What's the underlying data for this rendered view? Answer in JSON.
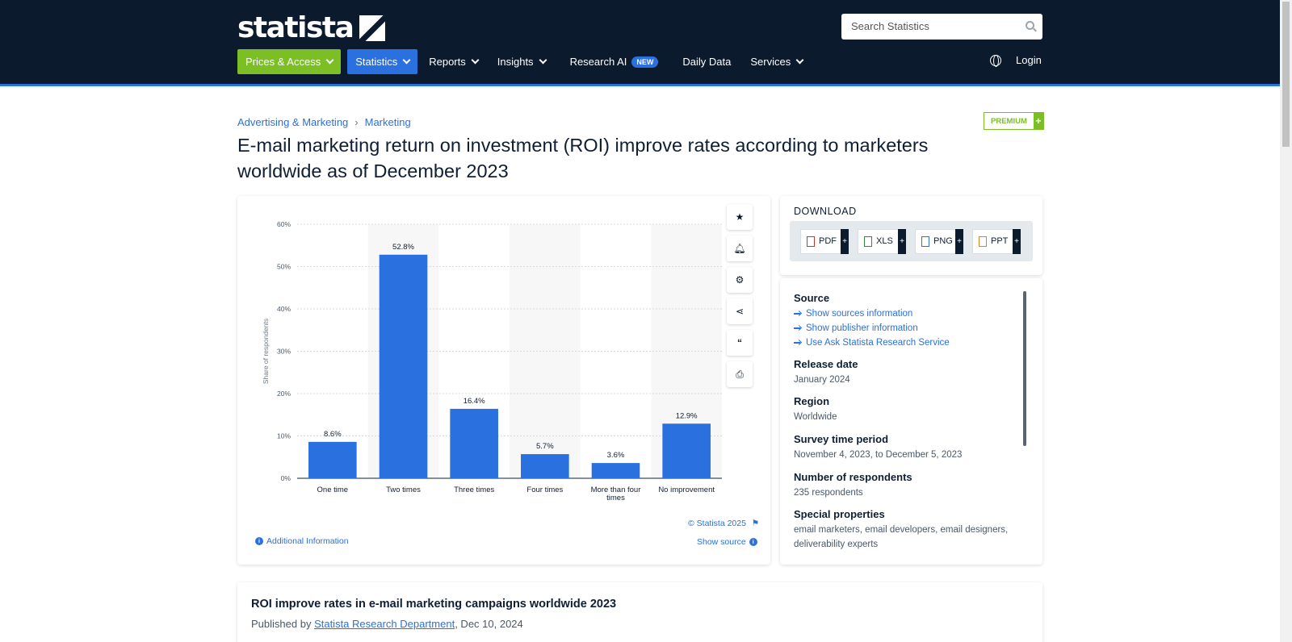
{
  "header": {
    "logo_text": "statista",
    "search_placeholder": "Search Statistics",
    "nav": [
      "Prices & Access",
      "Statistics",
      "Reports",
      "Insights",
      "Research AI",
      "Daily Data",
      "Services"
    ],
    "new_badge": "NEW",
    "login": "Login",
    "colors": {
      "navy": "#0c1a2e",
      "green": "#7bbf25",
      "blue": "#2a70de"
    }
  },
  "breadcrumb": [
    "Advertising & Marketing",
    "Marketing"
  ],
  "premium_label": "PREMIUM",
  "title": "E-mail marketing return on investment (ROI) improve rates according to marketers worldwide as of December 2023",
  "chart_tools": [
    "star-icon",
    "bell-icon",
    "gear-icon",
    "share-icon",
    "quote-icon",
    "print-icon"
  ],
  "chart_data": {
    "type": "bar",
    "categories": [
      "One time",
      "Two times",
      "Three times",
      "Four times",
      "More than four times",
      "No improvement"
    ],
    "values": [
      8.6,
      52.8,
      16.4,
      5.7,
      3.6,
      12.9
    ],
    "value_labels": [
      "8.6%",
      "52.8%",
      "16.4%",
      "5.7%",
      "3.6%",
      "12.9%"
    ],
    "ylabel": "Share of respondents",
    "ylim": [
      0,
      60
    ],
    "yticks": [
      "0%",
      "10%",
      "20%",
      "30%",
      "40%",
      "50%",
      "60%"
    ],
    "grid": true,
    "bar_color": "#2a70de"
  },
  "chart_footer": {
    "copyright": "© Statista 2025",
    "additional_info": "Additional Information",
    "show_source": "Show source"
  },
  "download": {
    "title": "DOWNLOAD",
    "formats": [
      "PDF",
      "XLS",
      "PNG",
      "PPT"
    ]
  },
  "info": {
    "source_label": "Source",
    "source_links": [
      "Show sources information",
      "Show publisher information",
      "Use Ask Statista Research Service"
    ],
    "release_label": "Release date",
    "release_value": "January 2024",
    "region_label": "Region",
    "region_value": "Worldwide",
    "survey_label": "Survey time period",
    "survey_value": "November 4, 2023, to December 5, 2023",
    "respondents_label": "Number of respondents",
    "respondents_value": "235 respondents",
    "special_label": "Special properties",
    "special_value": "email marketers, email developers, email designers, deliverability experts"
  },
  "bottom": {
    "title": "ROI improve rates in e-mail marketing campaigns worldwide 2023",
    "published_by": "Published by ",
    "author": "Statista Research Department",
    "date": ", Dec 10, 2024"
  }
}
